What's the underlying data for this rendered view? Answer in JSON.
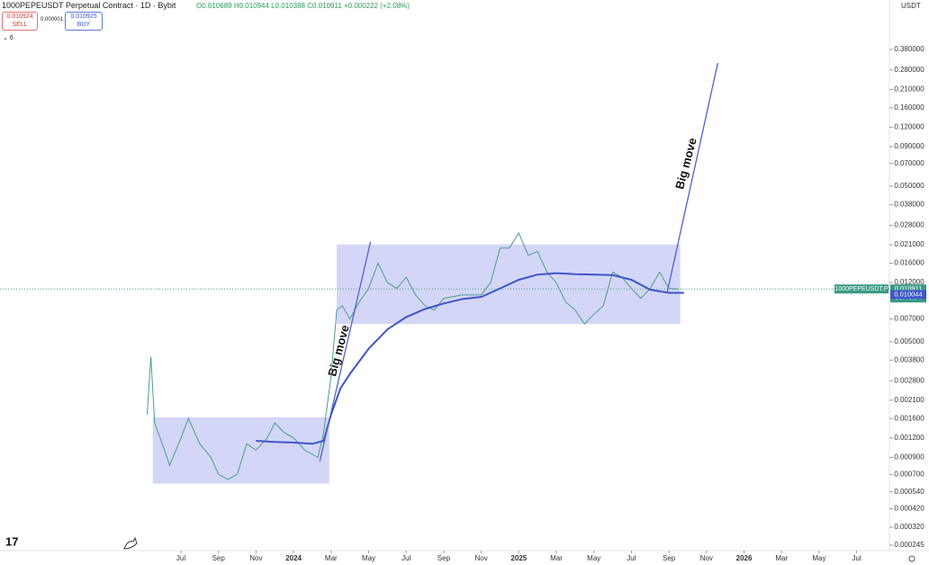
{
  "header": {
    "title": "1000PEPEUSDT Perpetual Contract · 1D · Bybit",
    "ohlc": "O0.010689 H0.010944 L0.010388 C0.010911 +0.000222 (+2.08%)",
    "sell_price": "0.010924",
    "sell": "SELL",
    "spread": "0.000001",
    "buy_price": "0.010925",
    "buy": "BUY",
    "indicators": "6",
    "currency": "USDT"
  },
  "chart_data": {
    "type": "line",
    "log_scale": true,
    "ylim": [
      0.000226,
      0.79
    ],
    "xlim": [
      -9.64,
      37.6
    ],
    "yticks": [
      {
        "value": 0.38,
        "label": "0.380000"
      },
      {
        "value": 0.28,
        "label": "0.280000"
      },
      {
        "value": 0.21,
        "label": "0.210000"
      },
      {
        "value": 0.16,
        "label": "0.160000"
      },
      {
        "value": 0.12,
        "label": "0.120000"
      },
      {
        "value": 0.09,
        "label": "0.090000"
      },
      {
        "value": 0.07,
        "label": "0.070000"
      },
      {
        "value": 0.05,
        "label": "0.050000"
      },
      {
        "value": 0.038,
        "label": "0.038000"
      },
      {
        "value": 0.028,
        "label": "0.028000"
      },
      {
        "value": 0.021,
        "label": "0.021000"
      },
      {
        "value": 0.016,
        "label": "0.016000"
      },
      {
        "value": 0.012,
        "label": "0.012000"
      },
      {
        "value": 0.007,
        "label": "0.007000"
      },
      {
        "value": 0.005,
        "label": "0.005000"
      },
      {
        "value": 0.0038,
        "label": "0.003800"
      },
      {
        "value": 0.0028,
        "label": "0.002800"
      },
      {
        "value": 0.0021,
        "label": "0.002100"
      },
      {
        "value": 0.0016,
        "label": "0.001600"
      },
      {
        "value": 0.0012,
        "label": "0.001200"
      },
      {
        "value": 0.0009,
        "label": "0.000900"
      },
      {
        "value": 0.0007,
        "label": "0.000700"
      },
      {
        "value": 0.00054,
        "label": "0.000540"
      },
      {
        "value": 0.00042,
        "label": "0.000420"
      },
      {
        "value": 0.00032,
        "label": "0.000320"
      },
      {
        "value": 0.000245,
        "label": "0.000245"
      }
    ],
    "xticks": [
      {
        "value": 0,
        "label": "Jul"
      },
      {
        "value": 2,
        "label": "Sep"
      },
      {
        "value": 4,
        "label": "Nov"
      },
      {
        "value": 6,
        "label": "2024"
      },
      {
        "value": 8,
        "label": "Mar"
      },
      {
        "value": 10,
        "label": "May"
      },
      {
        "value": 12,
        "label": "Jul"
      },
      {
        "value": 14,
        "label": "Sep"
      },
      {
        "value": 16,
        "label": "Nov"
      },
      {
        "value": 18,
        "label": "2025"
      },
      {
        "value": 20,
        "label": "Mar"
      },
      {
        "value": 22,
        "label": "May"
      },
      {
        "value": 24,
        "label": "Jul"
      },
      {
        "value": 26,
        "label": "Sep"
      },
      {
        "value": 28,
        "label": "Nov"
      },
      {
        "value": 30,
        "label": "2026"
      },
      {
        "value": 32,
        "label": "Mar"
      },
      {
        "value": 34,
        "label": "May"
      },
      {
        "value": 36,
        "label": "Jul"
      }
    ],
    "series": [
      {
        "color": "#4a9e8e",
        "x": [
          -1.8,
          -1.6,
          -1.4,
          -1.0,
          -0.6,
          0,
          0.4,
          1.0,
          1.6,
          2.0,
          2.5,
          3.0,
          3.5,
          4.0,
          4.6,
          5.0,
          5.5,
          6.0,
          6.6,
          7.3,
          7.6,
          8.0,
          8.3,
          8.6,
          9.0,
          9.5,
          10.0,
          10.5,
          11.0,
          11.5,
          12.0,
          12.5,
          13.0,
          13.5,
          14.0,
          15.0,
          16.0,
          16.5,
          17.0,
          17.5,
          18.0,
          18.5,
          19.0,
          19.5,
          20.0,
          20.5,
          21.0,
          21.5,
          22.0,
          22.5,
          23.0,
          23.5,
          24.0,
          24.5,
          25.0,
          25.5,
          26.0,
          26.5
        ],
        "values": [
          0.0017,
          0.004,
          0.0015,
          0.0011,
          0.0008,
          0.0012,
          0.0016,
          0.0011,
          0.0009,
          0.0007,
          0.00065,
          0.0007,
          0.0011,
          0.001,
          0.0012,
          0.0015,
          0.0013,
          0.0012,
          0.001,
          0.0009,
          0.0013,
          0.003,
          0.008,
          0.0085,
          0.007,
          0.009,
          0.011,
          0.016,
          0.012,
          0.011,
          0.013,
          0.01,
          0.0085,
          0.008,
          0.0095,
          0.01,
          0.01,
          0.012,
          0.02,
          0.02,
          0.025,
          0.018,
          0.019,
          0.014,
          0.012,
          0.009,
          0.008,
          0.0065,
          0.0075,
          0.0085,
          0.014,
          0.013,
          0.011,
          0.0095,
          0.011,
          0.014,
          0.011,
          0.0109
        ]
      },
      {
        "color": "#3d55c8",
        "x": [
          4,
          5,
          6,
          7,
          7.6,
          8.0,
          8.5,
          9,
          10,
          11,
          12,
          13,
          14,
          15,
          16,
          17,
          18,
          19,
          20,
          21,
          22,
          23,
          24,
          25,
          26,
          26.8
        ],
        "values": [
          0.00115,
          0.00113,
          0.00112,
          0.0011,
          0.00115,
          0.0017,
          0.0025,
          0.0031,
          0.0045,
          0.006,
          0.0072,
          0.0081,
          0.0088,
          0.0094,
          0.0097,
          0.011,
          0.0125,
          0.0135,
          0.0138,
          0.0136,
          0.0135,
          0.0134,
          0.0125,
          0.0108,
          0.0103,
          0.0103
        ]
      }
    ],
    "boxes": [
      {
        "color": "#c8ccf4",
        "x": [
          -1.5,
          7.9
        ],
        "y": [
          0.00061,
          0.00163
        ]
      },
      {
        "color": "#c8ccf4",
        "x": [
          8.3,
          26.6
        ],
        "y": [
          0.0065,
          0.0211
        ]
      }
    ],
    "trendlines": [
      {
        "color": "#4e62c9",
        "x": [
          7.4,
          10.1
        ],
        "y": [
          0.00085,
          0.022
        ]
      },
      {
        "color": "#4e62c9",
        "x": [
          25.9,
          28.6
        ],
        "y": [
          0.0103,
          0.31
        ]
      }
    ],
    "annotations": [
      "Big move",
      "Big move"
    ],
    "price_line": {
      "value": 0.010911,
      "label": "0.010911"
    },
    "symbol_label": "1000PEPEUSDT.P",
    "countdown": "06:46:54",
    "ma_value": {
      "value": 0.010044,
      "label": "0.010044"
    }
  }
}
